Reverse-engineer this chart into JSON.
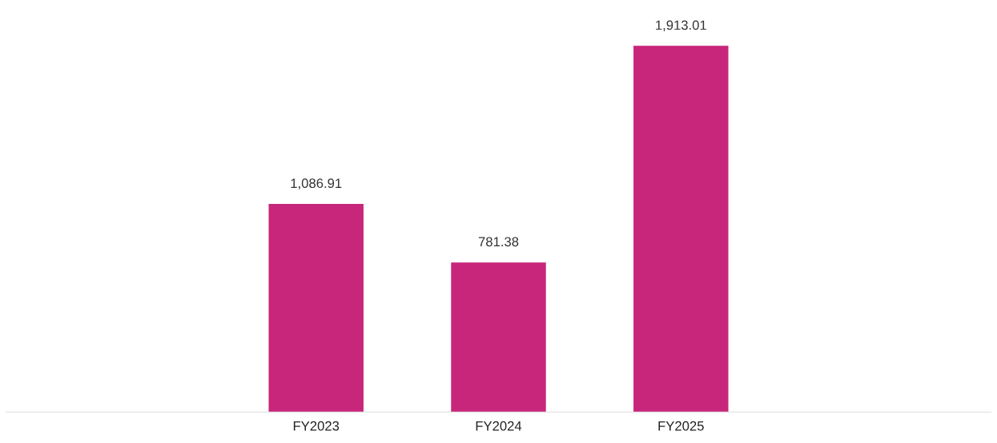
{
  "chart_data": {
    "type": "bar",
    "categories": [
      "FY2023",
      "FY2024",
      "FY2025"
    ],
    "values": [
      1086.91,
      781.38,
      1913.01
    ],
    "color": "#c8267a",
    "data_labels": true,
    "value_labels": [
      "1,086.91",
      "781.38",
      "1,913.01"
    ],
    "grid": false,
    "legend": false
  }
}
